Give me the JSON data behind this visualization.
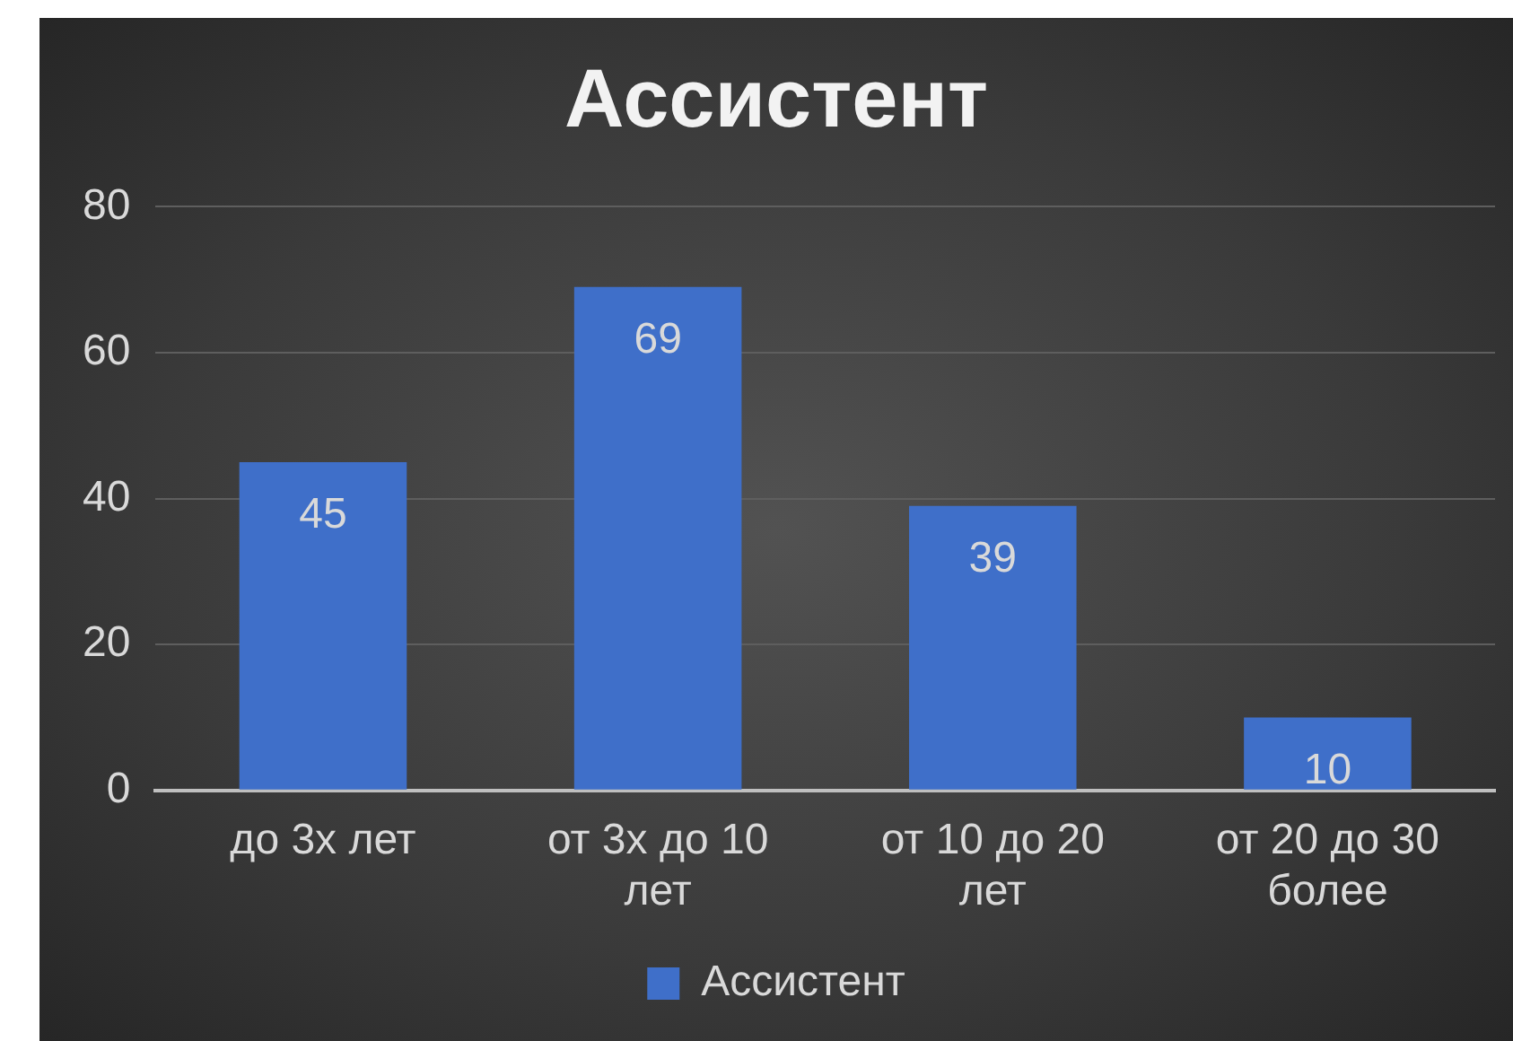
{
  "chart_data": {
    "type": "bar",
    "title": "Ассистент",
    "categories": [
      "до 3х лет",
      "от 3х до 10 лет",
      "от 10 до 20 лет",
      "от 20 до 30 более"
    ],
    "series": [
      {
        "name": "Ассистент",
        "color": "#3f6fc9",
        "values": [
          45,
          69,
          39,
          10
        ]
      }
    ],
    "ylim": [
      0,
      80
    ],
    "yticks": [
      0,
      20,
      40,
      60,
      80
    ],
    "grid": "y",
    "legend": "bottom",
    "data_labels": true
  }
}
